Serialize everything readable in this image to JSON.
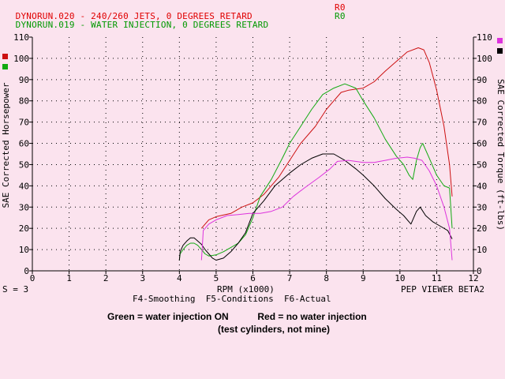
{
  "header": {
    "line1": {
      "text": "DYNORUN.020 - 240/260 JETS, 0 DEGREES RETARD",
      "code": "R0",
      "color": "#e00000"
    },
    "line2": {
      "text": "DYNORUN.019 - WATER INJECTION, 0 DEGREES RETARD",
      "code": "R0",
      "color": "#009900"
    }
  },
  "footer": {
    "scale": "S = 3",
    "rpm_label": "RPM (x1000)",
    "viewer": "PEP VIEWER BETA2",
    "keys": "F4-Smoothing  F5-Conditions  F6-Actual"
  },
  "captions": {
    "line1": "Green = water injection ON           Red = no water injection",
    "line2": "(test cylinders, not mine)"
  },
  "colors": {
    "red": "#cc1111",
    "green": "#11aa11",
    "black": "#000000",
    "magenta": "#dd33dd",
    "grid": "#000000"
  },
  "chart_data": {
    "type": "line",
    "xlabel": "RPM (x1000)",
    "ylabel_left": "SAE Corrected Horsepower",
    "ylabel_right": "SAE Corrected Torque (ft-lbs)",
    "xlim": [
      0,
      12
    ],
    "ylim": [
      0,
      110
    ],
    "x_ticks": [
      0,
      1,
      2,
      3,
      4,
      5,
      6,
      7,
      8,
      9,
      10,
      11,
      12
    ],
    "y_ticks": [
      0,
      10,
      20,
      30,
      40,
      50,
      60,
      70,
      80,
      90,
      100,
      110
    ],
    "series": [
      {
        "color": "red",
        "axis": "left",
        "points": [
          [
            4.6,
            20
          ],
          [
            4.8,
            24
          ],
          [
            5.0,
            25.5
          ],
          [
            5.4,
            27
          ],
          [
            5.7,
            30
          ],
          [
            6.0,
            32
          ],
          [
            6.3,
            36
          ],
          [
            6.7,
            44
          ],
          [
            7.0,
            52
          ],
          [
            7.3,
            60
          ],
          [
            7.7,
            68
          ],
          [
            8.0,
            76
          ],
          [
            8.2,
            80
          ],
          [
            8.4,
            84
          ],
          [
            8.6,
            85
          ],
          [
            8.8,
            85.5
          ],
          [
            9.0,
            86
          ],
          [
            9.3,
            89
          ],
          [
            9.6,
            94
          ],
          [
            10.0,
            100
          ],
          [
            10.2,
            103
          ],
          [
            10.5,
            105
          ],
          [
            10.65,
            104
          ],
          [
            10.8,
            98
          ],
          [
            11.0,
            85
          ],
          [
            11.2,
            68
          ],
          [
            11.35,
            50
          ],
          [
            11.42,
            35
          ]
        ]
      },
      {
        "color": "green",
        "axis": "left",
        "points": [
          [
            4.0,
            5
          ],
          [
            4.02,
            8
          ],
          [
            4.1,
            10
          ],
          [
            4.2,
            12
          ],
          [
            4.3,
            13
          ],
          [
            4.4,
            13
          ],
          [
            4.5,
            12
          ],
          [
            4.6,
            10
          ],
          [
            4.7,
            8
          ],
          [
            4.8,
            7
          ],
          [
            5.0,
            7.5
          ],
          [
            5.2,
            9
          ],
          [
            5.4,
            11
          ],
          [
            5.6,
            13
          ],
          [
            5.8,
            17
          ],
          [
            6.0,
            25
          ],
          [
            6.2,
            35
          ],
          [
            6.5,
            43
          ],
          [
            6.8,
            53
          ],
          [
            7.0,
            60
          ],
          [
            7.3,
            68
          ],
          [
            7.6,
            76
          ],
          [
            7.9,
            83
          ],
          [
            8.2,
            86
          ],
          [
            8.5,
            88
          ],
          [
            8.8,
            86
          ],
          [
            9.0,
            80
          ],
          [
            9.3,
            72
          ],
          [
            9.6,
            62
          ],
          [
            9.9,
            54
          ],
          [
            10.1,
            50
          ],
          [
            10.25,
            45
          ],
          [
            10.35,
            43
          ],
          [
            10.45,
            52
          ],
          [
            10.55,
            58
          ],
          [
            10.62,
            60
          ],
          [
            10.8,
            53
          ],
          [
            11.0,
            45
          ],
          [
            11.2,
            40
          ],
          [
            11.35,
            39
          ],
          [
            11.42,
            20
          ]
        ]
      },
      {
        "color": "black",
        "axis": "right",
        "points": [
          [
            4.0,
            5
          ],
          [
            4.02,
            9
          ],
          [
            4.1,
            12
          ],
          [
            4.2,
            14
          ],
          [
            4.3,
            15.5
          ],
          [
            4.4,
            15.5
          ],
          [
            4.5,
            14
          ],
          [
            4.6,
            12.5
          ],
          [
            4.7,
            10
          ],
          [
            4.8,
            8
          ],
          [
            4.9,
            6
          ],
          [
            5.0,
            5
          ],
          [
            5.2,
            6
          ],
          [
            5.4,
            9
          ],
          [
            5.6,
            13
          ],
          [
            5.8,
            18
          ],
          [
            6.0,
            27
          ],
          [
            6.3,
            33
          ],
          [
            6.6,
            40
          ],
          [
            7.0,
            46
          ],
          [
            7.3,
            50
          ],
          [
            7.6,
            53
          ],
          [
            7.9,
            55
          ],
          [
            8.2,
            55
          ],
          [
            8.5,
            52
          ],
          [
            8.8,
            48
          ],
          [
            9.0,
            45
          ],
          [
            9.3,
            40
          ],
          [
            9.6,
            34
          ],
          [
            9.9,
            29
          ],
          [
            10.1,
            26
          ],
          [
            10.3,
            22
          ],
          [
            10.45,
            28
          ],
          [
            10.55,
            30
          ],
          [
            10.7,
            26
          ],
          [
            10.9,
            23
          ],
          [
            11.1,
            21
          ],
          [
            11.3,
            19
          ],
          [
            11.42,
            15
          ]
        ]
      },
      {
        "color": "magenta",
        "axis": "right",
        "points": [
          [
            4.6,
            5
          ],
          [
            4.62,
            10
          ],
          [
            4.65,
            19
          ],
          [
            4.8,
            22
          ],
          [
            5.0,
            24
          ],
          [
            5.3,
            26
          ],
          [
            5.6,
            26.5
          ],
          [
            5.9,
            27
          ],
          [
            6.2,
            27
          ],
          [
            6.5,
            28
          ],
          [
            6.8,
            30
          ],
          [
            7.1,
            35
          ],
          [
            7.4,
            39
          ],
          [
            7.8,
            44
          ],
          [
            8.1,
            48
          ],
          [
            8.3,
            51.5
          ],
          [
            8.6,
            52
          ],
          [
            9.0,
            51
          ],
          [
            9.3,
            51
          ],
          [
            9.6,
            52
          ],
          [
            9.9,
            53
          ],
          [
            10.2,
            53.5
          ],
          [
            10.4,
            53
          ],
          [
            10.6,
            52
          ],
          [
            10.8,
            47
          ],
          [
            11.0,
            40
          ],
          [
            11.2,
            30
          ],
          [
            11.35,
            20
          ],
          [
            11.42,
            5
          ]
        ]
      }
    ]
  }
}
